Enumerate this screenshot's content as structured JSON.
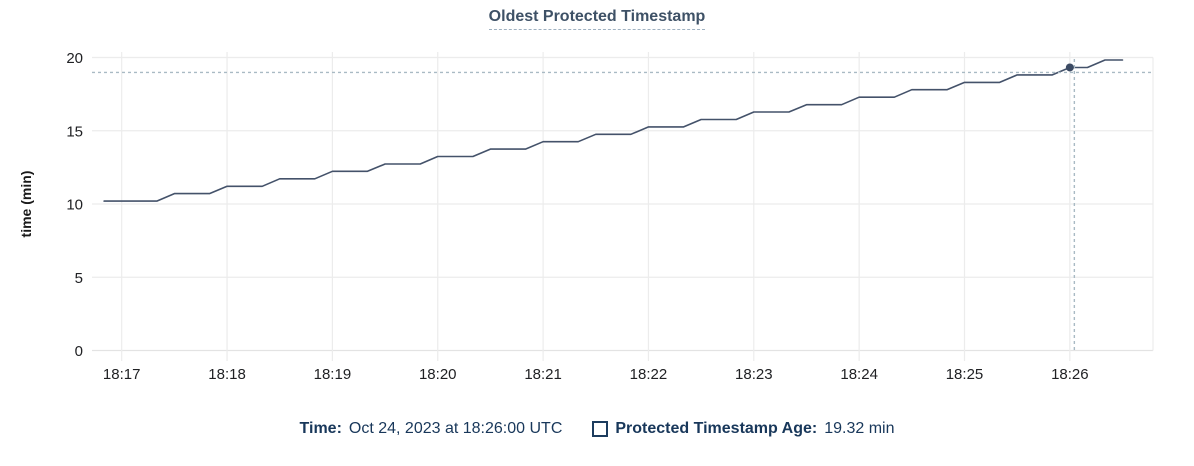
{
  "colors": {
    "title": "#3e5166",
    "footer_text": "#18375a",
    "line": "#44526a",
    "dot": "#3c4b64",
    "crosshair": "#a9bac4",
    "grid": "#ececec",
    "grid_zero": "#e3e3e3",
    "tick_text": "#202124",
    "axis_label": "#1a1a1a"
  },
  "footer": {
    "time_label": "Time:",
    "time_value": "Oct 24, 2023 at 18:26:00 UTC",
    "series_label": "Protected Timestamp Age:",
    "series_value": "19.32 min"
  },
  "chart_data": {
    "type": "line",
    "title": "Oldest Protected Timestamp",
    "xlabel": "",
    "ylabel": "time (min)",
    "ylim": [
      0,
      20
    ],
    "yticks": [
      0,
      5,
      10,
      15,
      20
    ],
    "xtick_labels": [
      "18:17",
      "18:18",
      "18:19",
      "18:20",
      "18:21",
      "18:22",
      "18:23",
      "18:24",
      "18:25",
      "18:26"
    ],
    "grid": true,
    "legend_position": "bottom",
    "series": [
      {
        "name": "Protected Timestamp Age",
        "unit": "min",
        "points": [
          [
            16.8333,
            10.2
          ],
          [
            17.0,
            10.2
          ],
          [
            17.1667,
            10.2
          ],
          [
            17.3333,
            10.2
          ],
          [
            17.5,
            10.71
          ],
          [
            17.6667,
            10.71
          ],
          [
            17.8333,
            10.71
          ],
          [
            18.0,
            11.21
          ],
          [
            18.1667,
            11.21
          ],
          [
            18.3333,
            11.21
          ],
          [
            18.5,
            11.72
          ],
          [
            18.6667,
            11.72
          ],
          [
            18.8333,
            11.72
          ],
          [
            19.0,
            12.23
          ],
          [
            19.1667,
            12.23
          ],
          [
            19.3333,
            12.23
          ],
          [
            19.5,
            12.73
          ],
          [
            19.6667,
            12.73
          ],
          [
            19.8333,
            12.73
          ],
          [
            20.0,
            13.24
          ],
          [
            20.1667,
            13.24
          ],
          [
            20.3333,
            13.24
          ],
          [
            20.5,
            13.75
          ],
          [
            20.6667,
            13.75
          ],
          [
            20.8333,
            13.75
          ],
          [
            21.0,
            14.25
          ],
          [
            21.1667,
            14.25
          ],
          [
            21.3333,
            14.25
          ],
          [
            21.5,
            14.76
          ],
          [
            21.6667,
            14.76
          ],
          [
            21.8333,
            14.76
          ],
          [
            22.0,
            15.26
          ],
          [
            22.1667,
            15.26
          ],
          [
            22.3333,
            15.26
          ],
          [
            22.5,
            15.77
          ],
          [
            22.6667,
            15.77
          ],
          [
            22.8333,
            15.77
          ],
          [
            23.0,
            16.28
          ],
          [
            23.1667,
            16.28
          ],
          [
            23.3333,
            16.28
          ],
          [
            23.5,
            16.78
          ],
          [
            23.6667,
            16.78
          ],
          [
            23.8333,
            16.78
          ],
          [
            24.0,
            17.29
          ],
          [
            24.1667,
            17.29
          ],
          [
            24.3333,
            17.29
          ],
          [
            24.5,
            17.8
          ],
          [
            24.6667,
            17.8
          ],
          [
            24.8333,
            17.8
          ],
          [
            25.0,
            18.3
          ],
          [
            25.1667,
            18.3
          ],
          [
            25.3333,
            18.3
          ],
          [
            25.5,
            18.81
          ],
          [
            25.6667,
            18.81
          ],
          [
            25.8333,
            18.81
          ],
          [
            26.0,
            19.32
          ],
          [
            26.1667,
            19.32
          ],
          [
            26.3333,
            19.83
          ],
          [
            26.5,
            19.83
          ]
        ]
      }
    ],
    "crosshair": {
      "x_label": "18:26",
      "x_min": 26.0,
      "value": 19.32
    }
  }
}
